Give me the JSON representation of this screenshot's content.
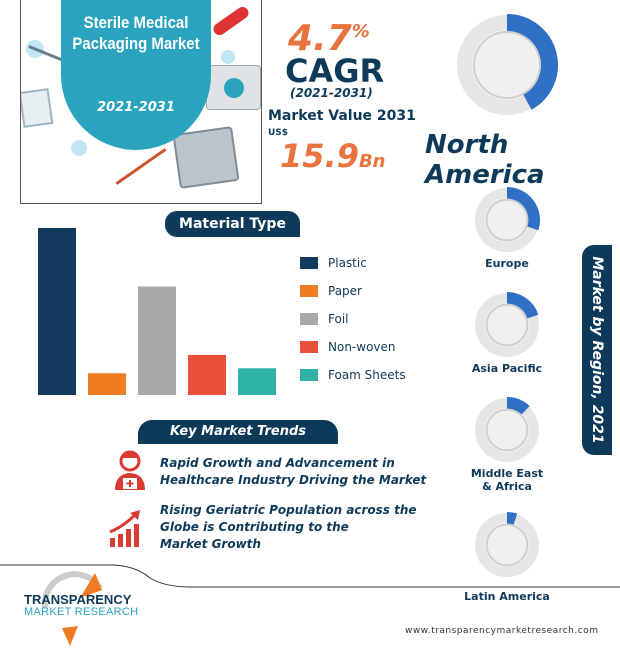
{
  "hero": {
    "title": "Sterile Medical Packaging Market",
    "years": "2021-2031"
  },
  "stats": {
    "cagr_value": "4.7",
    "cagr_unit": "%",
    "cagr_label": "CAGR",
    "cagr_period": "(2021-2031)",
    "market_value_label": "Market Value 2031",
    "currency": "US$",
    "market_value": "15.9",
    "market_value_unit": "Bn"
  },
  "material": {
    "heading": "Material Type"
  },
  "chart_data": [
    {
      "type": "bar",
      "title": "Material Type",
      "categories": [
        "Plastic",
        "Paper",
        "Foil",
        "Non-woven",
        "Foam Sheets"
      ],
      "values": [
        100,
        13,
        65,
        24,
        16
      ],
      "colors": [
        "#123a5c",
        "#ef7b22",
        "#a9a9a9",
        "#e9503a",
        "#2eb3a6"
      ],
      "grid": false,
      "legend": "right"
    },
    {
      "type": "pie",
      "title": "Market by Region, 2021",
      "categories": [
        "North America",
        "Europe",
        "Asia Pacific",
        "Middle East & Africa",
        "Latin America"
      ],
      "values": [
        42,
        30,
        20,
        12,
        5
      ],
      "color": "#2f6fc4"
    }
  ],
  "trends": {
    "heading": "Key Market Trends",
    "items": [
      {
        "icon": "doctor-icon",
        "lines": [
          "Rapid Growth and Advancement in",
          "Healthcare Industry Driving the Market"
        ]
      },
      {
        "icon": "growth-chart-icon",
        "lines": [
          "Rising Geriatric Population across the",
          "Globe is Contributing to the",
          "Market Growth"
        ]
      }
    ]
  },
  "region": {
    "heading": "Market by Region, 2021",
    "names": [
      "North America",
      "Europe",
      "Asia Pacific",
      "Middle East",
      "& Africa",
      "Latin America"
    ]
  },
  "footer": {
    "logo_line1": "TRANSPARENCY",
    "logo_line2": "MARKET RESEARCH",
    "url": "www.transparencymarketresearch.com"
  },
  "colors": {
    "navy": "#0e3a5a",
    "orange": "#e8733d",
    "teal": "#2aa3bf",
    "donut": "#2f6fc4"
  }
}
